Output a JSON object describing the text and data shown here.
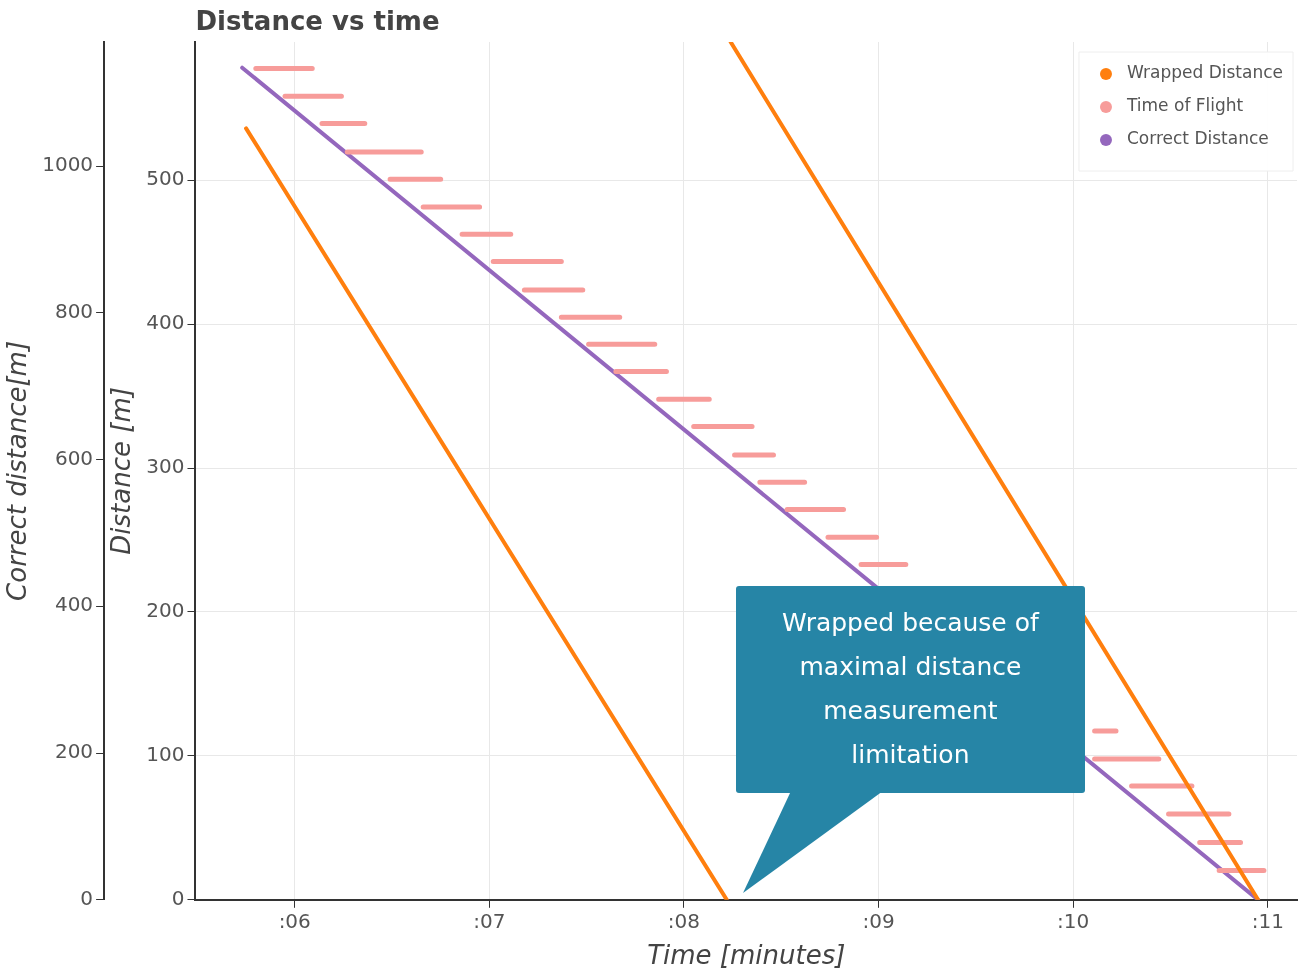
{
  "chart_data": {
    "type": "line",
    "title": "Distance vs time",
    "xlabel": "Time [minutes]",
    "ylabel": "Distance [m]",
    "y2label": "Correct distance[m]",
    "xlim": [
      5.49,
      11.15
    ],
    "xticks": [
      {
        "value": 6,
        "label": ":06"
      },
      {
        "value": 7,
        "label": ":07"
      },
      {
        "value": 8,
        "label": ":08"
      },
      {
        "value": 9,
        "label": ":09"
      },
      {
        "value": 10,
        "label": ":10"
      },
      {
        "value": 11,
        "label": ":11"
      }
    ],
    "ylim": [
      0,
      596
    ],
    "yticks": [
      0,
      100,
      200,
      300,
      400,
      500
    ],
    "y2lim": [
      0,
      1169
    ],
    "y2ticks": [
      0,
      200,
      400,
      600,
      800,
      1000
    ],
    "grid": true,
    "legend": "top right",
    "annotations": [
      "Wrapped because of maximal distance measurement limitation"
    ],
    "series": [
      {
        "name": "Wrapped Distance",
        "color": "#ff7f0e",
        "x": [
          5.75,
          8.22,
          null,
          8.24,
          10.95
        ],
        "values": [
          536,
          0,
          null,
          596,
          0
        ]
      },
      {
        "name": "Time of Flight",
        "color": "#f79c9a",
        "axis": "y2",
        "x": [
          5.8,
          6.09,
          null,
          5.95,
          6.24,
          null,
          6.14,
          6.36,
          null,
          6.27,
          6.65,
          null,
          6.49,
          6.75,
          null,
          6.66,
          6.95,
          null,
          6.86,
          7.11,
          null,
          7.02,
          7.37,
          null,
          7.18,
          7.48,
          null,
          7.37,
          7.67,
          null,
          7.51,
          7.85,
          null,
          7.65,
          7.91,
          null,
          7.87,
          8.13,
          null,
          8.05,
          8.35,
          null,
          8.26,
          8.46,
          null,
          8.39,
          8.62,
          null,
          8.53,
          8.82,
          null,
          8.74,
          8.99,
          null,
          8.91,
          9.14,
          null,
          10.11,
          10.22,
          null,
          10.11,
          10.44,
          null,
          10.3,
          10.61,
          null,
          10.49,
          10.8,
          null,
          10.65,
          10.86,
          null,
          10.75,
          10.98
        ],
        "values": [
          1133,
          1133,
          null,
          1095,
          1095,
          null,
          1058,
          1058,
          null,
          1019,
          1019,
          null,
          982,
          982,
          null,
          944,
          944,
          null,
          907,
          907,
          null,
          870,
          870,
          null,
          831,
          831,
          null,
          794,
          794,
          null,
          757,
          757,
          null,
          720,
          720,
          null,
          682,
          682,
          null,
          645,
          645,
          null,
          606,
          606,
          null,
          569,
          569,
          null,
          532,
          532,
          null,
          494,
          494,
          null,
          457,
          457,
          null,
          230,
          230,
          null,
          192,
          192,
          null,
          155,
          155,
          null,
          117,
          117,
          null,
          78,
          78,
          null,
          40,
          40
        ]
      },
      {
        "name": "Correct Distance",
        "color": "#9467bd",
        "axis": "y2",
        "x": [
          5.73,
          10.95
        ],
        "values": [
          1134,
          0
        ]
      }
    ]
  }
}
